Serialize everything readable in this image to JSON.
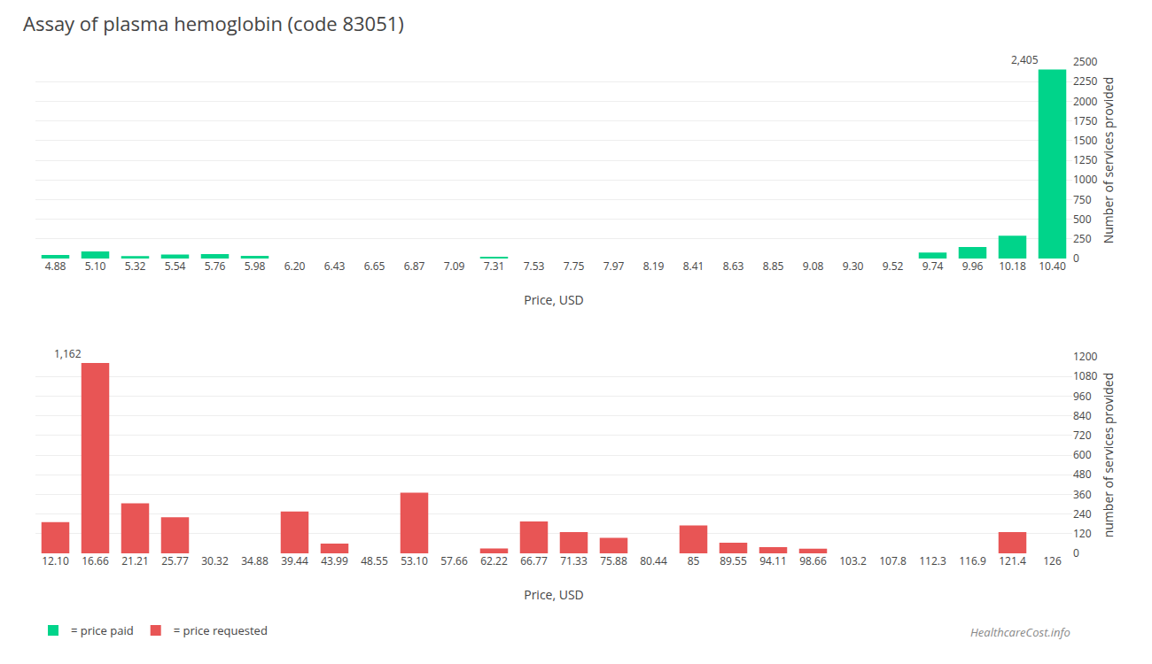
{
  "title": "Assay of plasma hemoglobin (code 83051)",
  "annotations": [
    {
      "text": "HealthcareCost.info"
    }
  ],
  "chart_data": [
    {
      "type": "bar",
      "categories": [
        "4.88",
        "5.10",
        "5.32",
        "5.54",
        "5.76",
        "5.98",
        "6.20",
        "6.43",
        "6.65",
        "6.87",
        "7.09",
        "7.31",
        "7.53",
        "7.75",
        "7.97",
        "8.19",
        "8.41",
        "8.63",
        "8.85",
        "9.08",
        "9.30",
        "9.52",
        "9.74",
        "9.96",
        "10.18",
        "10.40"
      ],
      "series": [
        {
          "name": "= price paid",
          "color": "#00d48a",
          "values": [
            45,
            90,
            30,
            50,
            55,
            35,
            0,
            0,
            0,
            0,
            0,
            20,
            0,
            0,
            0,
            0,
            0,
            0,
            0,
            0,
            0,
            0,
            75,
            145,
            290,
            2405
          ]
        }
      ],
      "xlabel": "Price, USD",
      "ylabel": "Number of services provided",
      "ylim": [
        0,
        2500
      ],
      "yticks": [
        0,
        250,
        500,
        750,
        1000,
        1250,
        1500,
        1750,
        2000,
        2250,
        2500
      ],
      "grid": true,
      "legend": "bottom left",
      "annotations": [
        {
          "x": "10.40",
          "y": 2405,
          "text": "2,405"
        }
      ]
    },
    {
      "type": "bar",
      "categories": [
        "12.10",
        "16.66",
        "21.21",
        "25.77",
        "30.32",
        "34.88",
        "39.44",
        "43.99",
        "48.55",
        "53.10",
        "57.66",
        "62.22",
        "66.77",
        "71.33",
        "75.88",
        "80.44",
        "85",
        "89.55",
        "94.11",
        "98.66",
        "103.2",
        "107.8",
        "112.3",
        "116.9",
        "121.4",
        "126"
      ],
      "series": [
        {
          "name": "= price requested",
          "color": "#e85555",
          "values": [
            190,
            1162,
            305,
            220,
            0,
            0,
            255,
            60,
            0,
            370,
            0,
            30,
            195,
            130,
            95,
            0,
            170,
            65,
            38,
            28,
            0,
            0,
            0,
            0,
            130,
            0
          ]
        }
      ],
      "xlabel": "Price, USD",
      "ylabel": "number of services provided",
      "ylim": [
        0,
        1200
      ],
      "yticks": [
        0,
        120,
        240,
        360,
        480,
        600,
        720,
        840,
        960,
        1080,
        1200
      ],
      "grid": true,
      "legend": "bottom left",
      "annotations": [
        {
          "x": "16.66",
          "y": 1162,
          "text": "1,162"
        }
      ]
    }
  ]
}
